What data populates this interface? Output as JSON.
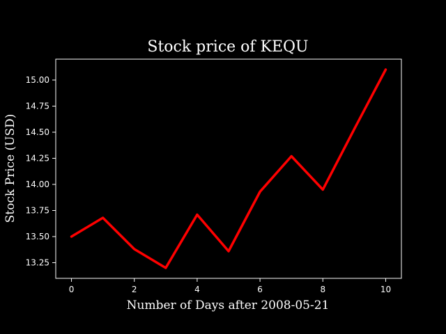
{
  "chart_data": {
    "type": "line",
    "title": "Stock price of KEQU",
    "xlabel": "Number of Days after 2008-05-21",
    "ylabel": "Stock Price (USD)",
    "x": [
      0,
      1,
      2,
      3,
      4,
      5,
      6,
      7,
      8,
      9,
      10
    ],
    "series": [
      {
        "values": [
          13.5,
          13.68,
          13.38,
          13.2,
          13.71,
          13.36,
          13.93,
          14.27,
          13.95,
          14.53,
          15.1
        ],
        "color": "#ff0000"
      }
    ],
    "xlim": [
      -0.5,
      10.5
    ],
    "ylim": [
      13.1,
      15.2
    ],
    "xticks": [
      0,
      2,
      4,
      6,
      8,
      10
    ],
    "yticks": [
      "13.25",
      "13.50",
      "13.75",
      "14.00",
      "14.25",
      "14.50",
      "14.75",
      "15.00"
    ],
    "grid": false,
    "background": "#000000",
    "axis_color": "#ffffff"
  }
}
